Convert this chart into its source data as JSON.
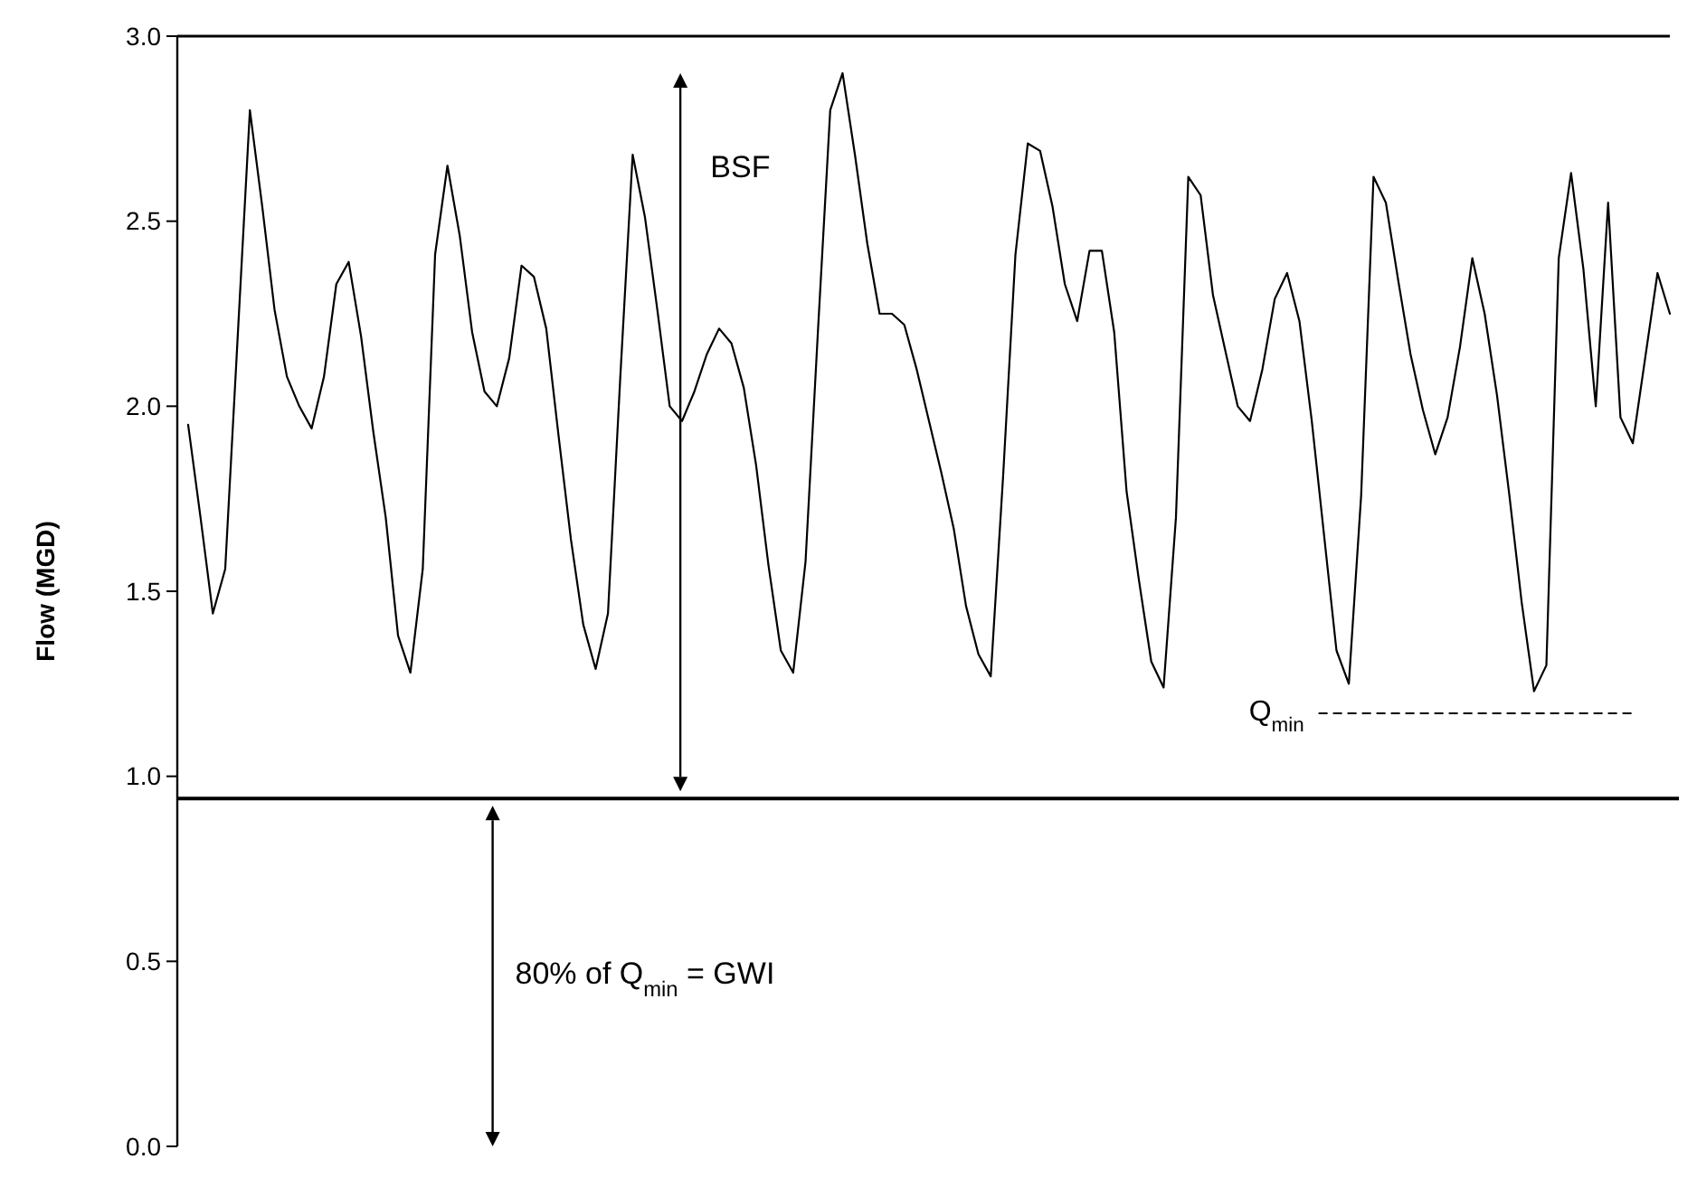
{
  "chart_data": {
    "type": "line",
    "ylabel": "Flow (MGD)",
    "categories": [
      null,
      null,
      null,
      null,
      null,
      null,
      null,
      null,
      null,
      null,
      null,
      null,
      null,
      null,
      null,
      null,
      null,
      null,
      null,
      null,
      null,
      null,
      null,
      null,
      null,
      null,
      null,
      null,
      null,
      null,
      null,
      null,
      null,
      null,
      null,
      null,
      null,
      null,
      null,
      null,
      null,
      null,
      null,
      null,
      null,
      null,
      null,
      null,
      null,
      null,
      null,
      null,
      null,
      null,
      null,
      null,
      null,
      null,
      null,
      null,
      null,
      null,
      null,
      null,
      null,
      null,
      null,
      null,
      null,
      null,
      null,
      null,
      null,
      null,
      null,
      null,
      null,
      null,
      null,
      null,
      null,
      null,
      null,
      null,
      null,
      null,
      null,
      null,
      null,
      null,
      null,
      null,
      null,
      null,
      null,
      null,
      null,
      null,
      null,
      null,
      null,
      null,
      null,
      null,
      null,
      null,
      null,
      null,
      null,
      null,
      null,
      null,
      null,
      null,
      null,
      null,
      null,
      null,
      null,
      null,
      null
    ],
    "series": [
      {
        "color": "#000000",
        "values": [
          1.95,
          1.7,
          1.44,
          1.56,
          2.18,
          2.8,
          2.54,
          2.26,
          2.08,
          2.0,
          1.94,
          2.08,
          2.33,
          2.39,
          2.19,
          1.93,
          1.7,
          1.38,
          1.28,
          1.56,
          2.41,
          2.65,
          2.46,
          2.2,
          2.04,
          2.0,
          2.13,
          2.38,
          2.35,
          2.21,
          1.92,
          1.64,
          1.41,
          1.29,
          1.44,
          2.08,
          2.68,
          2.51,
          2.26,
          2.0,
          1.96,
          2.04,
          2.14,
          2.21,
          2.17,
          2.05,
          1.84,
          1.57,
          1.34,
          1.28,
          1.58,
          2.2,
          2.8,
          2.9,
          2.68,
          2.44,
          2.25,
          2.25,
          2.22,
          2.1,
          1.96,
          1.82,
          1.67,
          1.46,
          1.33,
          1.27,
          1.81,
          2.41,
          2.71,
          2.69,
          2.54,
          2.33,
          2.23,
          2.42,
          2.42,
          2.2,
          1.77,
          1.53,
          1.31,
          1.24,
          1.7,
          2.62,
          2.57,
          2.3,
          2.15,
          2.0,
          1.96,
          2.1,
          2.29,
          2.36,
          2.23,
          1.96,
          1.65,
          1.34,
          1.25,
          1.76,
          2.62,
          2.55,
          2.34,
          2.14,
          1.99,
          1.87,
          1.97,
          2.16,
          2.4,
          2.25,
          2.03,
          1.76,
          1.47,
          1.23,
          1.3,
          2.4,
          2.63,
          2.37,
          2.0,
          2.55,
          1.97,
          1.9,
          2.13,
          2.36,
          2.25
        ]
      }
    ],
    "ylim": [
      0,
      3
    ],
    "yticks": [
      {
        "value": 0,
        "label": "0.0"
      },
      {
        "value": 0.5,
        "label": "0.5"
      },
      {
        "value": 1,
        "label": "1.0"
      },
      {
        "value": 1.5,
        "label": "1.5"
      },
      {
        "value": 2,
        "label": "2.0"
      },
      {
        "value": 2.5,
        "label": "2.5"
      },
      {
        "value": 3,
        "label": "3.0"
      }
    ],
    "grid": false,
    "tick_labels": "y",
    "ref_lines": [
      {
        "axis": "y",
        "value": 0.94,
        "label": null,
        "line_style": "solid",
        "color": "#000000"
      },
      {
        "axis": "y",
        "value": 1.17,
        "label": "Q$_{min}$",
        "line_style": "dashed",
        "color": "#000000"
      }
    ],
    "annotations": [
      "BSF",
      "80% of Q$_{min}$ = GWI"
    ]
  }
}
